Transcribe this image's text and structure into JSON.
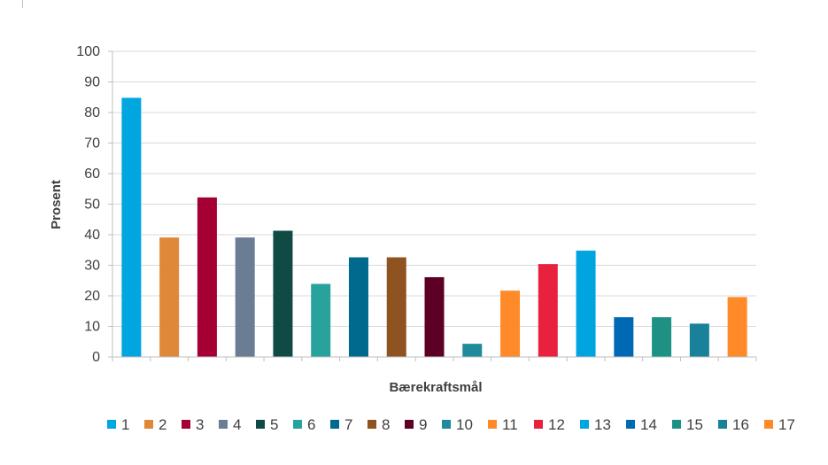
{
  "chart_data": {
    "type": "bar",
    "categories": [
      "1",
      "2",
      "3",
      "4",
      "5",
      "6",
      "7",
      "8",
      "9",
      "10",
      "11",
      "12",
      "13",
      "14",
      "15",
      "16",
      "17"
    ],
    "values": [
      84.8,
      39.1,
      52.2,
      39.1,
      41.3,
      23.9,
      32.6,
      32.6,
      26.1,
      4.3,
      21.7,
      30.4,
      34.8,
      13.0,
      13.0,
      10.9,
      19.6
    ],
    "colors": [
      "#00a6e0",
      "#e0883a",
      "#a50034",
      "#6a7d95",
      "#0f4a45",
      "#27a39b",
      "#006a8e",
      "#8e531e",
      "#5c0025",
      "#1f8a9a",
      "#ff8a2a",
      "#e8223e",
      "#00a5e0",
      "#0069b4",
      "#1d9184",
      "#198199",
      "#ff8a2a"
    ],
    "legend": [
      "1",
      "2",
      "3",
      "4",
      "5",
      "6",
      "7",
      "8",
      "9",
      "10",
      "11",
      "12",
      "13",
      "14",
      "15",
      "16",
      "17"
    ],
    "xlabel": "Bærekraftsmål",
    "ylabel": "Prosent",
    "ylim": [
      0,
      100
    ],
    "yticks": [
      0,
      10,
      20,
      30,
      40,
      50,
      60,
      70,
      80,
      90,
      100
    ],
    "grid": true,
    "legend_position": "bottom"
  }
}
